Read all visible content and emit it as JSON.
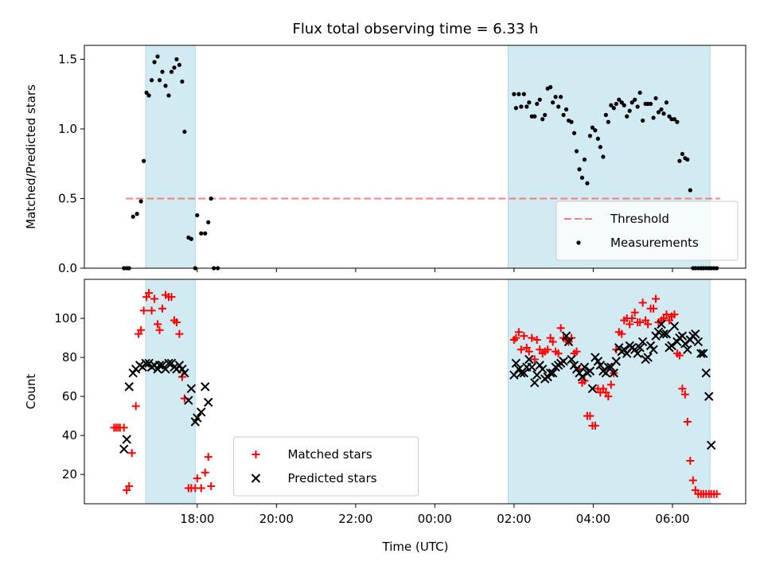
{
  "chart_data": {
    "type": "scatter",
    "title": "Flux total observing time = 6.33 h",
    "xlabel": "Time (UTC)",
    "x_unit": "hours since 17:00 UTC (axis wraps past midnight)",
    "xlim": [
      -1.85,
      14.85
    ],
    "xticks": [
      1,
      3,
      5,
      7,
      9,
      11,
      13
    ],
    "xtick_labels": [
      "18:00",
      "20:00",
      "22:00",
      "00:00",
      "02:00",
      "04:00",
      "06:00"
    ],
    "observing_windows": [
      [
        -0.3,
        0.95
      ],
      [
        8.85,
        13.95
      ]
    ],
    "window_color": "#add8e6",
    "panels": [
      {
        "id": "ratio",
        "ylabel": "Matched/Predicted stars",
        "ylim": [
          0,
          1.6
        ],
        "yticks": [
          0.0,
          0.5,
          1.0,
          1.5
        ],
        "ytick_labels": [
          "0.0",
          "0.5",
          "1.0",
          "1.5"
        ],
        "legend_position": "lower right",
        "threshold": {
          "name": "Threshold",
          "value": 0.5,
          "x_range": [
            -0.8,
            14.2
          ],
          "color": "#f08080"
        },
        "series": [
          {
            "name": "Measurements",
            "marker": "dot",
            "color": "#000000",
            "x": [
              -0.85,
              -0.78,
              -0.72,
              -0.62,
              -0.52,
              -0.42,
              -0.35,
              -0.28,
              -0.22,
              -0.15,
              -0.08,
              0.0,
              0.05,
              0.12,
              0.2,
              0.28,
              0.35,
              0.42,
              0.48,
              0.55,
              0.62,
              0.68,
              0.78,
              0.85,
              0.95,
              1.0,
              1.1,
              1.2,
              1.28,
              1.35,
              1.42,
              1.52,
              9.0,
              9.05,
              9.12,
              9.18,
              9.25,
              9.32,
              9.38,
              9.45,
              9.52,
              9.58,
              9.65,
              9.72,
              9.78,
              9.85,
              9.92,
              9.98,
              10.05,
              10.12,
              10.18,
              10.25,
              10.32,
              10.38,
              10.45,
              10.52,
              10.58,
              10.65,
              10.72,
              10.78,
              10.85,
              10.92,
              10.98,
              11.05,
              11.12,
              11.18,
              11.25,
              11.32,
              11.38,
              11.45,
              11.52,
              11.58,
              11.65,
              11.72,
              11.78,
              11.85,
              11.92,
              11.98,
              12.05,
              12.12,
              12.18,
              12.25,
              12.32,
              12.38,
              12.45,
              12.52,
              12.58,
              12.65,
              12.72,
              12.78,
              12.85,
              12.92,
              12.98,
              13.05,
              13.12,
              13.18,
              13.25,
              13.32,
              13.38,
              13.45,
              13.52,
              13.58,
              13.65,
              13.72,
              13.78,
              13.85,
              13.92,
              13.98,
              14.05,
              14.12
            ],
            "y": [
              0.0,
              0.0,
              0.0,
              0.37,
              0.39,
              0.48,
              0.77,
              1.26,
              1.24,
              1.35,
              1.48,
              1.52,
              1.35,
              1.41,
              1.31,
              1.24,
              1.41,
              1.44,
              1.5,
              1.46,
              1.34,
              0.98,
              0.22,
              0.21,
              0.0,
              0.38,
              0.25,
              0.25,
              0.33,
              0.5,
              0.0,
              0.0,
              1.25,
              1.15,
              1.25,
              1.16,
              1.25,
              1.16,
              1.19,
              1.09,
              1.09,
              1.18,
              1.21,
              1.07,
              1.1,
              1.29,
              1.3,
              1.19,
              1.23,
              1.16,
              1.23,
              1.1,
              1.14,
              1.06,
              1.05,
              0.97,
              0.84,
              0.71,
              0.65,
              0.78,
              0.61,
              0.95,
              1.01,
              0.99,
              0.93,
              0.87,
              0.8,
              1.1,
              1.05,
              1.17,
              1.15,
              1.18,
              1.21,
              1.19,
              1.17,
              1.09,
              1.13,
              1.19,
              1.21,
              1.16,
              1.26,
              1.06,
              1.18,
              1.18,
              1.18,
              1.08,
              1.22,
              1.12,
              1.14,
              1.11,
              1.19,
              1.09,
              1.07,
              1.07,
              1.05,
              0.77,
              0.82,
              0.79,
              0.78,
              0.56,
              0.0,
              0.0,
              0.0,
              0.0,
              0.0,
              0.0,
              0.0,
              0.0,
              0.0,
              0.0
            ]
          }
        ]
      },
      {
        "id": "counts",
        "ylabel": "Count",
        "ylim": [
          5,
          120
        ],
        "yticks": [
          20,
          40,
          60,
          80,
          100
        ],
        "ytick_labels": [
          "20",
          "40",
          "60",
          "80",
          "100"
        ],
        "legend_position": "lower center",
        "series": [
          {
            "name": "Matched stars",
            "marker": "plus",
            "color": "#ff0000",
            "x": [
              -1.1,
              -1.05,
              -1.0,
              -0.95,
              -0.85,
              -0.78,
              -0.72,
              -0.65,
              -0.55,
              -0.48,
              -0.42,
              -0.35,
              -0.28,
              -0.22,
              -0.15,
              -0.08,
              0.0,
              0.05,
              0.12,
              0.2,
              0.28,
              0.35,
              0.42,
              0.48,
              0.55,
              0.62,
              0.68,
              0.78,
              0.85,
              0.95,
              1.0,
              1.1,
              1.2,
              1.28,
              1.35,
              9.0,
              9.05,
              9.12,
              9.18,
              9.25,
              9.32,
              9.38,
              9.45,
              9.52,
              9.58,
              9.65,
              9.72,
              9.78,
              9.85,
              9.92,
              9.98,
              10.05,
              10.12,
              10.18,
              10.25,
              10.32,
              10.38,
              10.45,
              10.52,
              10.58,
              10.65,
              10.72,
              10.78,
              10.85,
              10.92,
              10.98,
              11.05,
              11.12,
              11.18,
              11.25,
              11.32,
              11.38,
              11.45,
              11.52,
              11.58,
              11.65,
              11.72,
              11.78,
              11.85,
              11.92,
              11.98,
              12.05,
              12.12,
              12.18,
              12.25,
              12.32,
              12.38,
              12.45,
              12.52,
              12.58,
              12.65,
              12.72,
              12.78,
              12.85,
              12.92,
              12.98,
              13.05,
              13.12,
              13.18,
              13.25,
              13.32,
              13.38,
              13.45,
              13.52,
              13.58,
              13.65,
              13.72,
              13.78,
              13.85,
              13.92,
              13.98,
              14.05,
              14.12
            ],
            "y": [
              44,
              44,
              44,
              44,
              44,
              12,
              14,
              31,
              55,
              92,
              94,
              104,
              111,
              113,
              104,
              110,
              97,
              94,
              105,
              112,
              111,
              111,
              99,
              98,
              92,
              70,
              59,
              13,
              13,
              13,
              18,
              13,
              21,
              29,
              14,
              89,
              90,
              93,
              84,
              91,
              85,
              83,
              90,
              79,
              89,
              84,
              82,
              83,
              84,
              90,
              88,
              83,
              82,
              95,
              90,
              89,
              88,
              90,
              82,
              83,
              74,
              67,
              68,
              50,
              50,
              45,
              45,
              64,
              62,
              64,
              62,
              60,
              66,
              72,
              84,
              93,
              92,
              99,
              100,
              97,
              100,
              103,
              98,
              98,
              108,
              99,
              97,
              105,
              105,
              110,
              98,
              99,
              100,
              102,
              99,
              101,
              102,
              82,
              81,
              64,
              61,
              47,
              27,
              17,
              12,
              10,
              10,
              10,
              10,
              10,
              10,
              10,
              10
            ]
          },
          {
            "name": "Predicted stars",
            "marker": "cross",
            "color": "#000000",
            "x": [
              -0.85,
              -0.78,
              -0.72,
              -0.62,
              -0.55,
              -0.45,
              -0.38,
              -0.3,
              -0.22,
              -0.15,
              -0.08,
              0.0,
              0.05,
              0.12,
              0.2,
              0.28,
              0.35,
              0.42,
              0.48,
              0.55,
              0.62,
              0.68,
              0.78,
              0.85,
              0.95,
              1.0,
              1.1,
              1.2,
              1.28,
              9.0,
              9.05,
              9.12,
              9.18,
              9.25,
              9.32,
              9.38,
              9.45,
              9.52,
              9.58,
              9.65,
              9.72,
              9.78,
              9.85,
              9.92,
              9.98,
              10.05,
              10.12,
              10.18,
              10.25,
              10.32,
              10.38,
              10.45,
              10.52,
              10.58,
              10.65,
              10.72,
              10.78,
              10.85,
              10.92,
              10.98,
              11.05,
              11.12,
              11.18,
              11.25,
              11.32,
              11.38,
              11.45,
              11.52,
              11.58,
              11.65,
              11.72,
              11.78,
              11.85,
              11.92,
              11.98,
              12.05,
              12.12,
              12.18,
              12.25,
              12.32,
              12.38,
              12.45,
              12.52,
              12.58,
              12.65,
              12.72,
              12.78,
              12.85,
              12.92,
              12.98,
              13.05,
              13.12,
              13.18,
              13.25,
              13.32,
              13.38,
              13.45,
              13.52,
              13.58,
              13.65,
              13.72,
              13.78,
              13.85,
              13.92,
              13.98
            ],
            "y": [
              33,
              38,
              65,
              72,
              74,
              76,
              75,
              77,
              77,
              75,
              76,
              74,
              76,
              76,
              74,
              77,
              77,
              75,
              74,
              76,
              74,
              72,
              58,
              64,
              47,
              49,
              52,
              65,
              57,
              71,
              77,
              74,
              72,
              72,
              75,
              79,
              75,
              67,
              71,
              76,
              74,
              69,
              70,
              72,
              72,
              75,
              76,
              77,
              78,
              91,
              88,
              79,
              76,
              74,
              72,
              70,
              75,
              72,
              73,
              64,
              80,
              78,
              76,
              73,
              72,
              75,
              75,
              72,
              78,
              85,
              83,
              84,
              82,
              86,
              85,
              84,
              82,
              85,
              88,
              79,
              80,
              86,
              84,
              91,
              93,
              97,
              92,
              92,
              85,
              86,
              96,
              88,
              90,
              91,
              87,
              84,
              89,
              91,
              92,
              88,
              82,
              82,
              72,
              60,
              35
            ]
          }
        ]
      }
    ]
  }
}
